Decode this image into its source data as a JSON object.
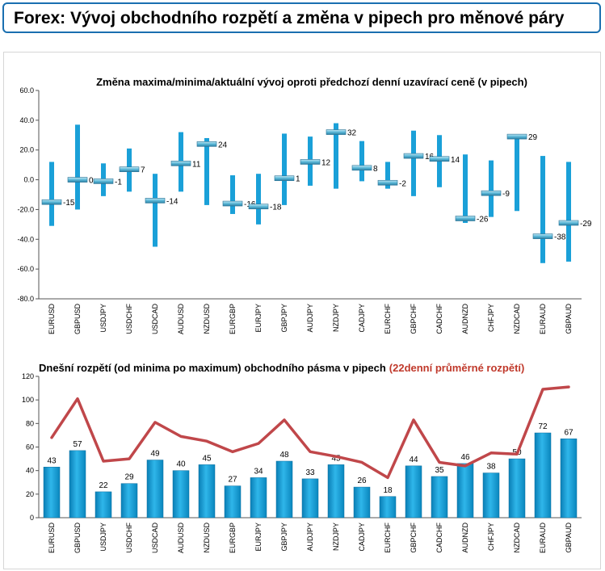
{
  "title": "Forex: Vývoj obchodního rozpětí a změna v pipech pro měnové páry",
  "chart_data": [
    {
      "type": "range",
      "title": "Změna maxima/minima/aktuální vývoj oproti předchozí denní uzavírací ceně (v pipech)",
      "ylim": [
        -80,
        60
      ],
      "yticks": [
        "60.0",
        "40.0",
        "20.0",
        "0.0",
        "-20.0",
        "-40.0",
        "-60.0",
        "-80.0"
      ],
      "categories": [
        "EURUSD",
        "GBPUSD",
        "USDJPY",
        "USDCHF",
        "USDCAD",
        "AUDUSD",
        "NZDUSD",
        "EURGBP",
        "EURJPY",
        "GBPJPY",
        "AUDJPY",
        "NZDJPY",
        "CADJPY",
        "EURCHF",
        "GBPCHF",
        "CADCHF",
        "AUDNZD",
        "CHFJPY",
        "NZDCAD",
        "EURAUD",
        "GBPAUD"
      ],
      "high": [
        12,
        37,
        11,
        21,
        4,
        32,
        28,
        3,
        4,
        31,
        29,
        38,
        26,
        12,
        33,
        30,
        17,
        13,
        30,
        16,
        12
      ],
      "low": [
        -31,
        -20,
        -11,
        -8,
        -45,
        -8,
        -17,
        -23,
        -30,
        -17,
        -4,
        -6,
        -1,
        -6,
        -11,
        -5,
        -29,
        -25,
        -21,
        -56,
        -55
      ],
      "current": [
        -15,
        0,
        -1,
        7,
        -14,
        11,
        24,
        -16,
        -18,
        1,
        12,
        32,
        8,
        -2,
        16,
        14,
        -26,
        -9,
        29,
        -38,
        -29
      ],
      "labels": [
        "-15",
        "0",
        "-1",
        "7",
        "-14",
        "11",
        "24",
        "-16",
        "-18",
        "1",
        "12",
        "32",
        "8",
        "-2",
        "16",
        "14",
        "-26",
        "-9",
        "29",
        "-38",
        "-29"
      ],
      "color": "#1aa0d8"
    },
    {
      "type": "bar",
      "title": "Dnešní rozpětí (od minima po maximum) obchodního pásma v pipech",
      "title_suffix": "(22denní průměrné rozpětí)",
      "title_suffix_color": "#c0392b",
      "ylim": [
        0,
        120
      ],
      "yticks": [
        "120",
        "100",
        "80",
        "60",
        "40",
        "20",
        "0"
      ],
      "categories": [
        "EURUSD",
        "GBPUSD",
        "USDJPY",
        "USDCHF",
        "USDCAD",
        "AUDUSD",
        "NZDUSD",
        "EURGBP",
        "EURJPY",
        "GBPJPY",
        "AUDJPY",
        "NZDJPY",
        "CADJPY",
        "EURCHF",
        "GBPCHF",
        "CADCHF",
        "AUDNZD",
        "CHFJPY",
        "NZDCAD",
        "EURAUD",
        "GBPAUD"
      ],
      "values": [
        43,
        57,
        22,
        29,
        49,
        40,
        45,
        27,
        34,
        48,
        33,
        45,
        26,
        18,
        44,
        35,
        46,
        38,
        50,
        72,
        67
      ],
      "labels": [
        "43",
        "57",
        "22",
        "29",
        "49",
        "40",
        "45",
        "27",
        "34",
        "48",
        "33",
        "45",
        "26",
        "18",
        "44",
        "35",
        "46",
        "38",
        "50",
        "72",
        "67"
      ],
      "average": [
        68,
        101,
        48,
        50,
        81,
        69,
        65,
        56,
        63,
        83,
        56,
        52,
        47,
        34,
        83,
        47,
        44,
        55,
        54,
        109,
        111
      ],
      "bar_color": "#1aa0d8",
      "line_color": "#c0474a"
    }
  ]
}
